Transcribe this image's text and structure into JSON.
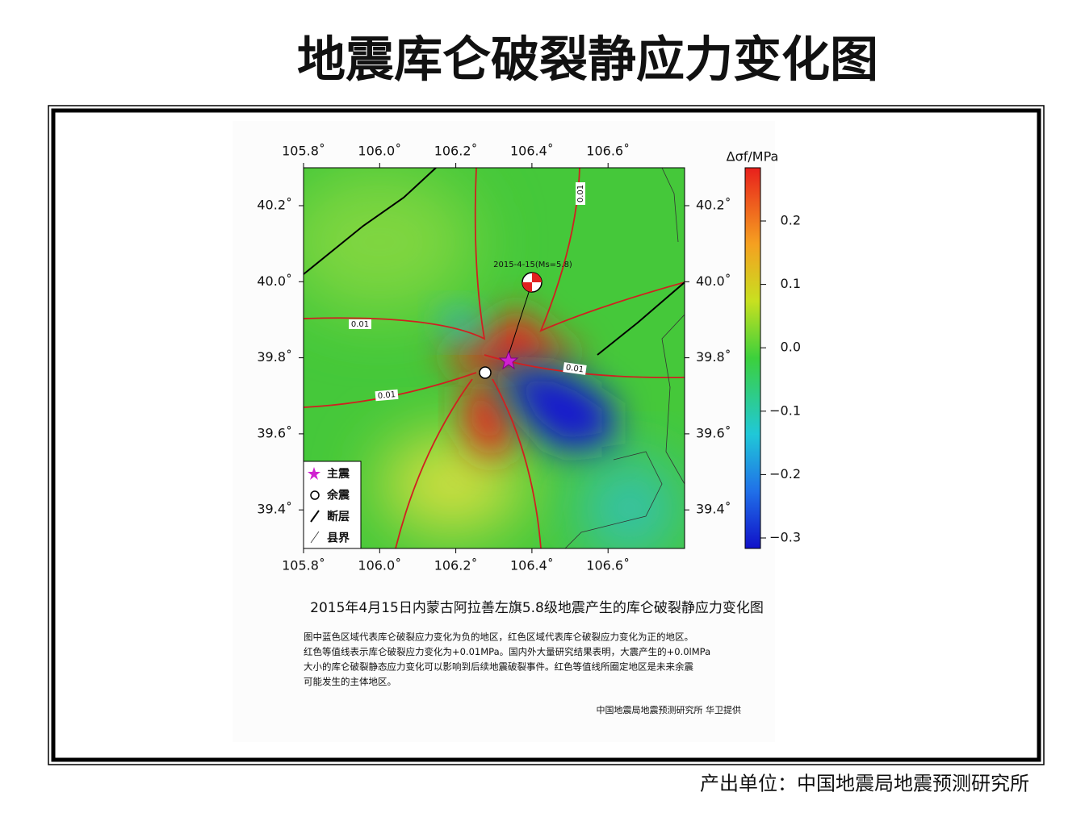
{
  "title": "地震库仑破裂静应力变化图",
  "map": {
    "xticks": [
      "105.8˚",
      "106.0˚",
      "106.2˚",
      "106.4˚",
      "106.6˚"
    ],
    "yticks": [
      "40.2˚",
      "40.0˚",
      "39.8˚",
      "39.6˚",
      "39.4˚"
    ],
    "colorbar": {
      "label": "Δσf/MPa",
      "ticks": [
        "0.2",
        "0.1",
        "0.0",
        "−0.1",
        "−0.2",
        "−0.3"
      ]
    },
    "event_label": "2015-4-15(Ms=5.8)",
    "contour_labels": [
      "0.01",
      "0.01",
      "0.01",
      "0.01"
    ],
    "legend": [
      "主震",
      "余震",
      "断层",
      "县界"
    ]
  },
  "caption": {
    "title": "2015年4月15日内蒙古阿拉善左旗5.8级地震产生的库仑破裂静应力变化图",
    "lines": [
      "图中蓝色区域代表库仑破裂应力变化为负的地区，红色区域代表库仑破裂应力变化为正的地区。",
      "红色等值线表示库仑破裂应力变化为+0.01MPa。国内外大量研究结果表明，大震产生的+0.0lMPa",
      "大小的库仑破裂静态应力变化可以影响到后续地震破裂事件。红色等值线所圈定地区是未来余震",
      "可能发生的主体地区。"
    ],
    "credit": "中国地震局地震预测研究所 华卫提供"
  },
  "footer": "产出单位：中国地震局地震预测研究所"
}
